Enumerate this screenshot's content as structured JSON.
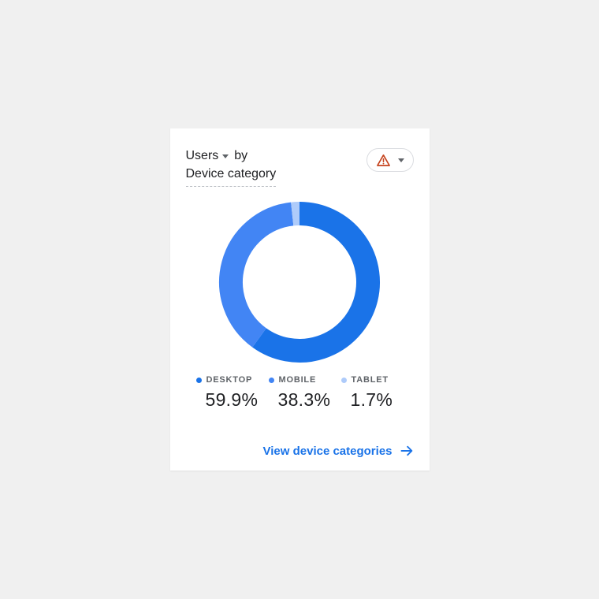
{
  "colors": {
    "accent": "#1a73e8",
    "warning": "#c5421c",
    "page_bg": "#f0f0f0",
    "card_bg": "#ffffff",
    "text_primary": "#202124",
    "text_secondary": "#5f6368",
    "border": "#dadce0"
  },
  "card": {
    "title": {
      "metric": "Users",
      "connector": "by",
      "dimension": "Device category"
    }
  },
  "chart_data": {
    "type": "pie",
    "donut": true,
    "title": "Users by Device category",
    "categories": [
      "DESKTOP",
      "MOBILE",
      "TABLET"
    ],
    "values": [
      59.9,
      38.3,
      1.7
    ],
    "display_values": [
      "59.9%",
      "38.3%",
      "1.7%"
    ],
    "colors": [
      "#1a73e8",
      "#4285f4",
      "#aecbfa"
    ],
    "start_angle_deg": 0,
    "direction": "clockwise",
    "legend_position": "bottom"
  },
  "footer": {
    "link_label": "View device categories"
  }
}
